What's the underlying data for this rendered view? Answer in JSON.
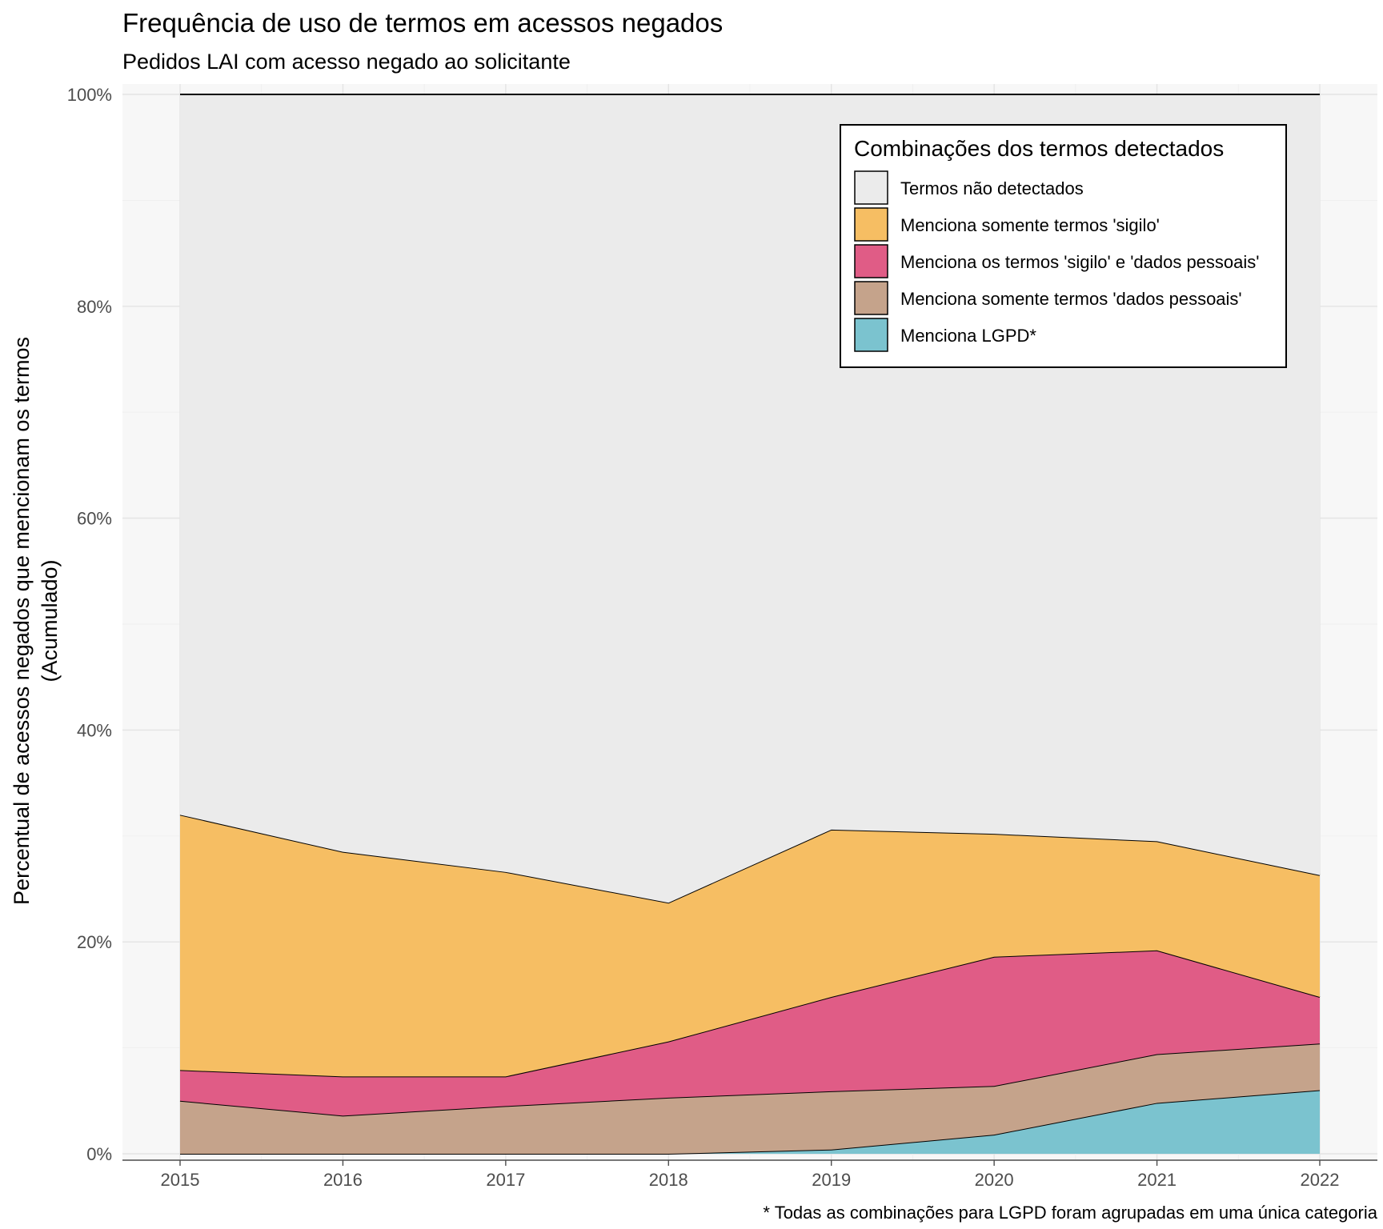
{
  "title": "Frequência de uso de termos em acessos negados",
  "subtitle": "Pedidos LAI com acesso negado ao solicitante",
  "caption": "* Todas as combinações para LGPD foram agrupadas em uma única categoria",
  "chart_data": {
    "type": "area",
    "stacked": true,
    "title": "Frequência de uso de termos em acessos negados",
    "subtitle": "Pedidos LAI com acesso negado ao solicitante",
    "xlabel": "",
    "ylabel_lines": [
      "Percentual de acessos negados que mencionam os termos",
      "(Acumulado)"
    ],
    "x": [
      "2015",
      "2016",
      "2017",
      "2018",
      "2019",
      "2020",
      "2021",
      "2022"
    ],
    "ylim": [
      0,
      100
    ],
    "yticks": [
      "0%",
      "20%",
      "40%",
      "60%",
      "80%",
      "100%"
    ],
    "grid": true,
    "legend": {
      "title": "Combinações dos termos detectados",
      "position": "top-right"
    },
    "series": [
      {
        "name": "Menciona LGPD*",
        "color": "#7bc3cf",
        "values": [
          0,
          0,
          0,
          0,
          0.4,
          1.8,
          4.8,
          6.0
        ]
      },
      {
        "name": "Menciona somente termos 'dados pessoais'",
        "color": "#c5a38b",
        "values": [
          5.0,
          3.6,
          4.5,
          5.3,
          5.5,
          4.6,
          4.6,
          4.4
        ]
      },
      {
        "name": "Menciona os termos 'sigilo' e 'dados pessoais'",
        "color": "#e05c86",
        "values": [
          2.9,
          3.7,
          2.8,
          5.3,
          8.9,
          12.2,
          9.8,
          4.4
        ]
      },
      {
        "name": "Menciona somente termos 'sigilo'",
        "color": "#f6be63",
        "values": [
          24.1,
          21.2,
          19.3,
          13.1,
          15.8,
          11.6,
          10.3,
          11.5
        ]
      },
      {
        "name": "Termos não detectados",
        "color": "#ebebeb",
        "values": [
          68.0,
          71.5,
          73.4,
          76.3,
          69.4,
          69.8,
          70.5,
          73.7
        ]
      }
    ],
    "legend_order": [
      "Termos não detectados",
      "Menciona somente termos 'sigilo'",
      "Menciona os termos 'sigilo' e 'dados pessoais'",
      "Menciona somente termos 'dados pessoais'",
      "Menciona LGPD*"
    ]
  }
}
